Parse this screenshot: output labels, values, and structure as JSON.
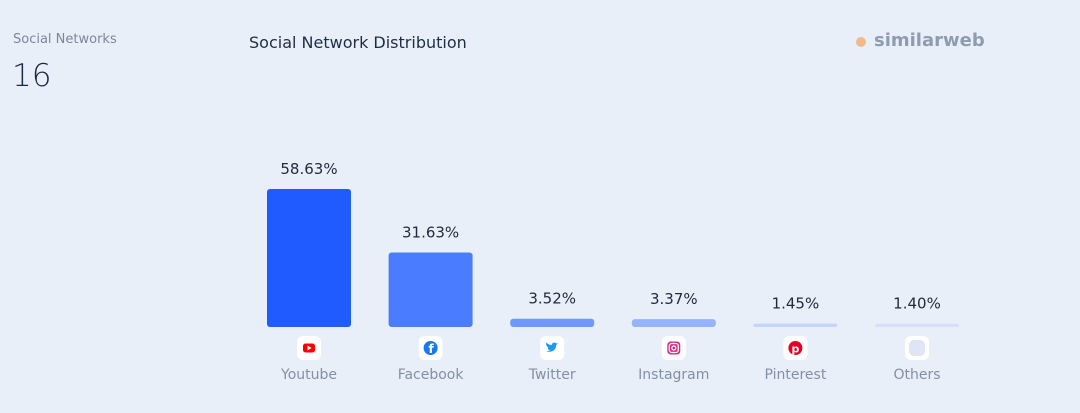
{
  "kpi": {
    "label": "Social Networks",
    "value": "16"
  },
  "logo": {
    "text": "similarweb"
  },
  "chart_data": {
    "type": "bar",
    "title": "Social Network Distribution",
    "categories": [
      "Youtube",
      "Facebook",
      "Twitter",
      "Instagram",
      "Pinterest",
      "Others"
    ],
    "values": [
      58.63,
      31.63,
      3.52,
      3.37,
      1.45,
      1.4
    ],
    "labels": [
      "58.63%",
      "31.63%",
      "3.52%",
      "3.37%",
      "1.45%",
      "1.40%"
    ],
    "icons": [
      "youtube-icon",
      "facebook-icon",
      "twitter-icon",
      "instagram-icon",
      "pinterest-icon",
      "others-icon"
    ],
    "colors": [
      "#1f5bff",
      "#4a7cff",
      "#6f98ff",
      "#95b3ff",
      "#c3d5ff",
      "#d5e1fa"
    ],
    "ylim": [
      0,
      58.63
    ],
    "grid": false
  }
}
